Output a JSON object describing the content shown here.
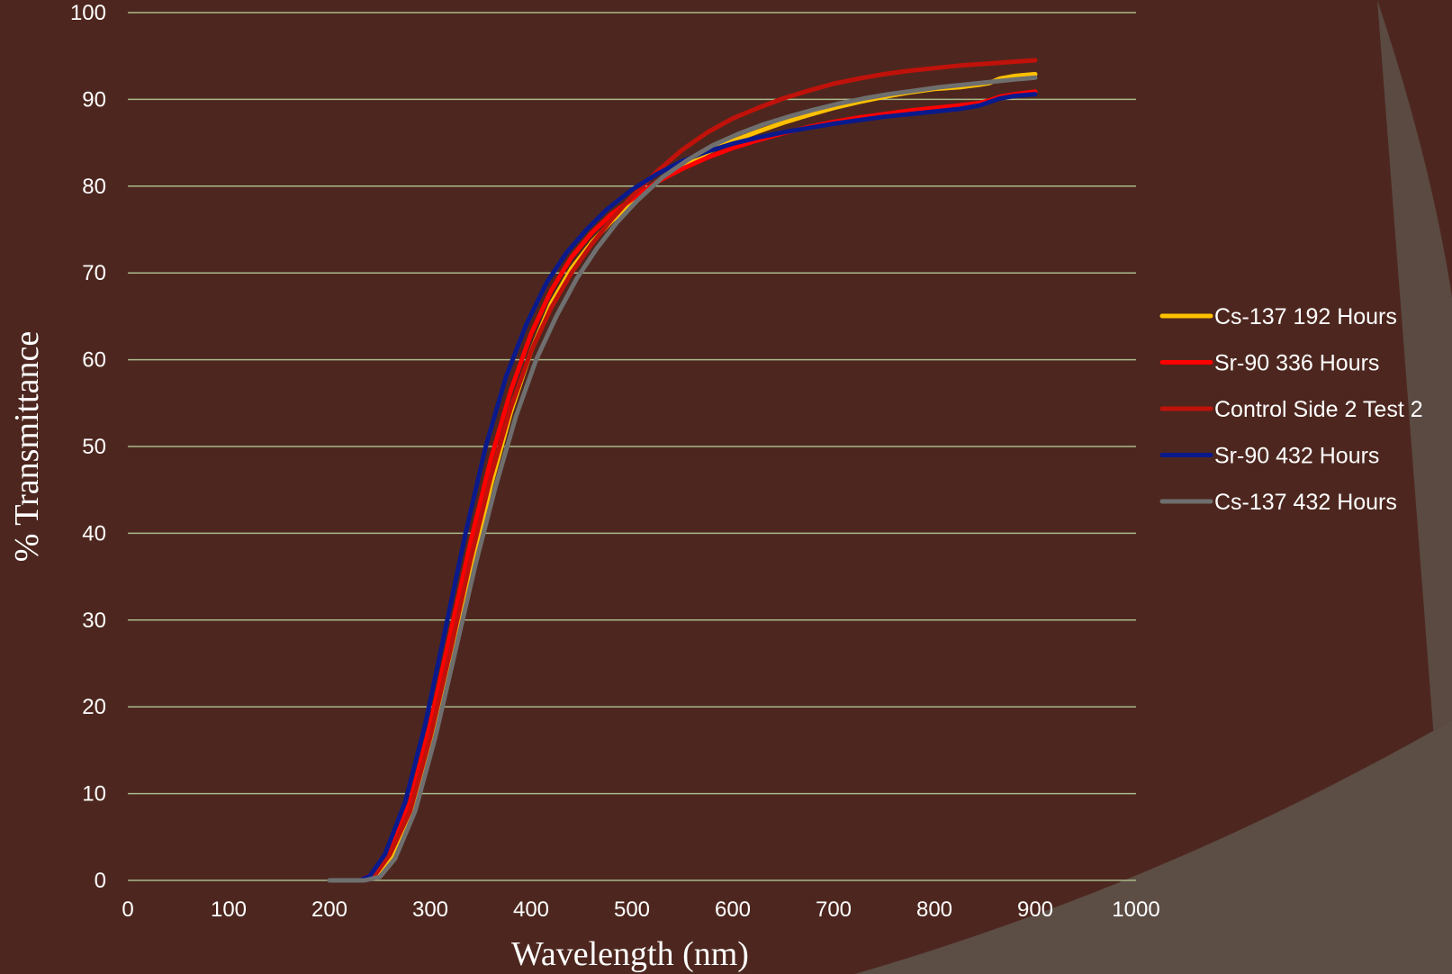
{
  "chart_data": {
    "type": "line",
    "xlabel": "Wavelength (nm)",
    "ylabel": "% Transmittance",
    "xlim": [
      0,
      1000
    ],
    "ylim": [
      0,
      100
    ],
    "x_ticks": [
      0,
      100,
      200,
      300,
      400,
      500,
      600,
      700,
      800,
      900,
      1000
    ],
    "y_ticks": [
      0,
      10,
      20,
      30,
      40,
      50,
      60,
      70,
      80,
      90,
      100
    ],
    "grid": "horizontal",
    "legend_position": "right",
    "series": [
      {
        "name": "Cs-137 192 Hours",
        "color": "#ffc000",
        "points": [
          [
            200,
            0
          ],
          [
            230,
            0
          ],
          [
            245,
            0.5
          ],
          [
            260,
            2.5
          ],
          [
            280,
            7
          ],
          [
            300,
            15
          ],
          [
            320,
            25
          ],
          [
            340,
            35.5
          ],
          [
            360,
            45.5
          ],
          [
            380,
            54
          ],
          [
            400,
            61
          ],
          [
            420,
            66.5
          ],
          [
            440,
            70.5
          ],
          [
            460,
            73.5
          ],
          [
            480,
            76
          ],
          [
            500,
            78
          ],
          [
            525,
            80.5
          ],
          [
            550,
            82.3
          ],
          [
            575,
            83.9
          ],
          [
            600,
            85.2
          ],
          [
            625,
            86.3
          ],
          [
            650,
            87.3
          ],
          [
            675,
            88.2
          ],
          [
            700,
            89
          ],
          [
            725,
            89.7
          ],
          [
            750,
            90.3
          ],
          [
            775,
            90.8
          ],
          [
            800,
            91.2
          ],
          [
            825,
            91.4
          ],
          [
            845,
            91.7
          ],
          [
            855,
            91.9
          ],
          [
            865,
            92.4
          ],
          [
            880,
            92.7
          ],
          [
            900,
            92.9
          ]
        ]
      },
      {
        "name": "Sr-90 336 Hours",
        "color": "#ff0000",
        "points": [
          [
            200,
            0
          ],
          [
            230,
            0
          ],
          [
            245,
            0.8
          ],
          [
            260,
            3.5
          ],
          [
            280,
            9
          ],
          [
            300,
            18
          ],
          [
            320,
            28.5
          ],
          [
            340,
            39
          ],
          [
            360,
            48.5
          ],
          [
            380,
            56.5
          ],
          [
            400,
            63
          ],
          [
            420,
            68
          ],
          [
            440,
            71.8
          ],
          [
            460,
            74.6
          ],
          [
            480,
            76.8
          ],
          [
            500,
            78.5
          ],
          [
            525,
            80.5
          ],
          [
            550,
            82
          ],
          [
            575,
            83.3
          ],
          [
            600,
            84.4
          ],
          [
            625,
            85.3
          ],
          [
            650,
            86.1
          ],
          [
            675,
            86.8
          ],
          [
            700,
            87.4
          ],
          [
            725,
            87.9
          ],
          [
            750,
            88.3
          ],
          [
            775,
            88.7
          ],
          [
            800,
            89
          ],
          [
            825,
            89.3
          ],
          [
            845,
            89.6
          ],
          [
            855,
            89.9
          ],
          [
            865,
            90.3
          ],
          [
            880,
            90.6
          ],
          [
            900,
            90.9
          ]
        ]
      },
      {
        "name": "Control Side 2 Test 2",
        "color": "#c0120a",
        "points": [
          [
            200,
            0
          ],
          [
            230,
            0
          ],
          [
            245,
            0.6
          ],
          [
            260,
            3
          ],
          [
            280,
            8
          ],
          [
            300,
            16.5
          ],
          [
            320,
            26.5
          ],
          [
            340,
            37
          ],
          [
            360,
            46.5
          ],
          [
            380,
            54.5
          ],
          [
            400,
            61
          ],
          [
            420,
            66
          ],
          [
            440,
            70
          ],
          [
            460,
            73.3
          ],
          [
            480,
            76.2
          ],
          [
            500,
            78.8
          ],
          [
            525,
            81.7
          ],
          [
            550,
            84.2
          ],
          [
            575,
            86.2
          ],
          [
            600,
            87.8
          ],
          [
            625,
            89
          ],
          [
            650,
            90.1
          ],
          [
            675,
            91
          ],
          [
            700,
            91.8
          ],
          [
            725,
            92.4
          ],
          [
            750,
            92.9
          ],
          [
            775,
            93.3
          ],
          [
            800,
            93.6
          ],
          [
            825,
            93.9
          ],
          [
            850,
            94.1
          ],
          [
            875,
            94.3
          ],
          [
            900,
            94.5
          ]
        ]
      },
      {
        "name": "Sr-90 432 Hours",
        "color": "#0a1a8c",
        "points": [
          [
            200,
            0
          ],
          [
            230,
            0
          ],
          [
            240,
            0.5
          ],
          [
            255,
            3
          ],
          [
            275,
            9
          ],
          [
            295,
            18
          ],
          [
            315,
            29
          ],
          [
            335,
            40
          ],
          [
            355,
            50
          ],
          [
            375,
            58
          ],
          [
            395,
            64
          ],
          [
            415,
            68.8
          ],
          [
            435,
            72.3
          ],
          [
            455,
            75
          ],
          [
            475,
            77.3
          ],
          [
            500,
            79.6
          ],
          [
            525,
            81.4
          ],
          [
            550,
            82.9
          ],
          [
            575,
            84
          ],
          [
            600,
            84.9
          ],
          [
            625,
            85.6
          ],
          [
            650,
            86.2
          ],
          [
            675,
            86.7
          ],
          [
            700,
            87.2
          ],
          [
            725,
            87.6
          ],
          [
            750,
            88
          ],
          [
            775,
            88.3
          ],
          [
            800,
            88.6
          ],
          [
            825,
            88.9
          ],
          [
            845,
            89.3
          ],
          [
            855,
            89.7
          ],
          [
            865,
            90.1
          ],
          [
            880,
            90.4
          ],
          [
            900,
            90.6
          ]
        ]
      },
      {
        "name": "Cs-137 432 Hours",
        "color": "#6f6f6f",
        "points": [
          [
            200,
            0
          ],
          [
            235,
            0
          ],
          [
            250,
            0.4
          ],
          [
            265,
            2.5
          ],
          [
            285,
            8
          ],
          [
            305,
            16.5
          ],
          [
            325,
            26.5
          ],
          [
            345,
            36.5
          ],
          [
            365,
            45.5
          ],
          [
            385,
            53.5
          ],
          [
            405,
            60
          ],
          [
            425,
            65
          ],
          [
            445,
            69.3
          ],
          [
            465,
            72.8
          ],
          [
            485,
            75.8
          ],
          [
            505,
            78.3
          ],
          [
            530,
            81
          ],
          [
            555,
            83
          ],
          [
            580,
            84.7
          ],
          [
            605,
            86
          ],
          [
            630,
            87.1
          ],
          [
            655,
            88
          ],
          [
            680,
            88.8
          ],
          [
            705,
            89.5
          ],
          [
            730,
            90.1
          ],
          [
            755,
            90.6
          ],
          [
            780,
            91
          ],
          [
            805,
            91.4
          ],
          [
            830,
            91.7
          ],
          [
            855,
            92
          ],
          [
            880,
            92.3
          ],
          [
            900,
            92.5
          ]
        ]
      }
    ]
  }
}
